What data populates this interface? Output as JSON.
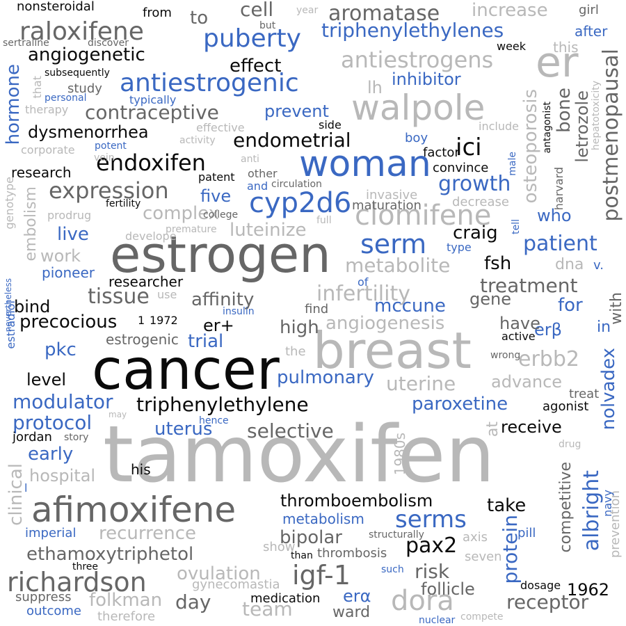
{
  "palette": {
    "black": "#0a0a0a",
    "dark_gray": "#666666",
    "light_gray": "#b8b8b8",
    "blue": "#3a68c2",
    "background": "#ffffff"
  },
  "words": [
    "tamoxifen",
    "cancer",
    "estrogen",
    "breast",
    "er",
    "afimoxifene",
    "walpole",
    "woman",
    "cyp2d6",
    "raloxifene",
    "clomifene",
    "richardson",
    "serm",
    "antiestrogenic",
    "igf-1",
    "puberty",
    "dora",
    "serms",
    "ethamoxytriphetol",
    "triphenylethylene",
    "endoxifen",
    "expression",
    "antiestrogens",
    "infertility",
    "growth",
    "postmenopausal",
    "letrozole",
    "nolvadex",
    "endometrial",
    "receptor",
    "patient",
    "thromboembolism",
    "contraceptive",
    "modulator",
    "protocol",
    "metabolite",
    "selective",
    "uterine",
    "ici",
    "erbb2",
    "increase",
    "aromatase",
    "triphenylethylenes",
    "complex",
    "recurrence",
    "ovulation",
    "folkman",
    "affinity",
    "pax2",
    "tissue",
    "dysmenorrhea",
    "angiogenetic",
    "precocious",
    "trial",
    "pulmonary",
    "effect",
    "luteinize",
    "risk",
    "hormone",
    "bone",
    "osteoporosis",
    "albright",
    "protein",
    "treatment",
    "paroxetine",
    "angiogenesis",
    "cell",
    "craig",
    "uterus",
    "early",
    "who",
    "team",
    "bipolar",
    "embolism",
    "clinical",
    "fsh",
    "inhibitor",
    "prevent",
    "live",
    "pkc",
    "mccune",
    "er+",
    "high",
    "take",
    "gene",
    "receive",
    "level",
    "bind",
    "research",
    "five",
    "day",
    "advance",
    "ward",
    "erβ",
    "erα",
    "follicle",
    "1962",
    "have",
    "work",
    "hospital",
    "competitive",
    "researcher",
    "dna",
    "to",
    "lh",
    "this",
    "at",
    "for",
    "in",
    "with",
    "v.",
    "estrogenic",
    "pioneer",
    "jordan",
    "estradiol",
    "genotype",
    "nevertheless",
    "1972",
    "find",
    "the",
    "active",
    "wrong",
    "treat",
    "agonist",
    "maturation",
    "invasive",
    "decrease",
    "his",
    "suppress",
    "outcome",
    "therefore",
    "medication",
    "gynecomastia",
    "thrombosis",
    "show",
    "structurally",
    "axis",
    "pill",
    "seven",
    "than",
    "three",
    "such",
    "nuclear",
    "compete",
    "dosage",
    "drug",
    "story",
    "hence",
    "may",
    "prevention",
    "navy",
    "1980s",
    "imperial",
    "metabolism",
    "insulin",
    "of",
    "use",
    "type",
    "tell",
    "convince",
    "factor",
    "boy",
    "side",
    "include",
    "effective",
    "activity",
    "corporate",
    "potent",
    "vein",
    "anti",
    "patent",
    "other",
    "and",
    "circulation",
    "fertility",
    "college",
    "prodrug",
    "develope",
    "premature",
    "full",
    "study",
    "personal",
    "typically",
    "therapy",
    "subsequently",
    "that",
    "sertraline",
    "discover",
    "nonsteroidal",
    "from",
    "but",
    "year",
    "girl",
    "after",
    "week",
    "harvard",
    "male",
    "antagonist",
    "hepatotoxicity",
    "l",
    "1"
  ]
}
